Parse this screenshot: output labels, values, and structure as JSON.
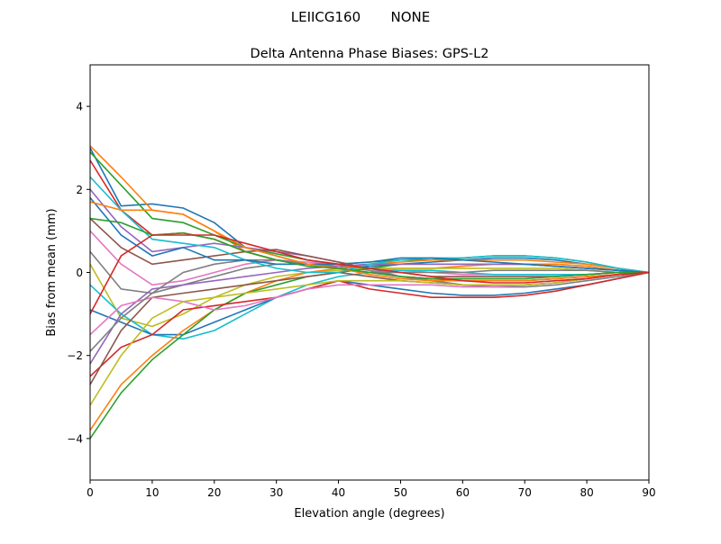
{
  "chart_data": {
    "type": "line",
    "suptitle": "LEIICG160       NONE",
    "title": "Delta Antenna Phase Biases: GPS-L2",
    "xlabel": "Elevation angle (degrees)",
    "ylabel": "Bias from mean (mm)",
    "xlim": [
      0,
      90
    ],
    "ylim": [
      -5,
      5
    ],
    "xticks": [
      0,
      10,
      20,
      30,
      40,
      50,
      60,
      70,
      80,
      90
    ],
    "yticks": [
      -4,
      -2,
      0,
      2,
      4
    ],
    "grid": false,
    "colors": [
      "#1f77b4",
      "#ff7f0e",
      "#2ca02c",
      "#d62728",
      "#9467bd",
      "#8c564b",
      "#e377c2",
      "#7f7f7f",
      "#bcbd22",
      "#17becf"
    ],
    "x": [
      0,
      5,
      10,
      15,
      20,
      25,
      30,
      35,
      40,
      45,
      50,
      55,
      60,
      65,
      70,
      75,
      80,
      85,
      90
    ],
    "series": [
      {
        "values": [
          3.0,
          1.6,
          1.65,
          1.55,
          1.2,
          0.6,
          0.4,
          0.2,
          0.1,
          0.15,
          0.2,
          0.25,
          0.3,
          0.35,
          0.35,
          0.3,
          0.2,
          0.1,
          0
        ]
      },
      {
        "values": [
          3.05,
          2.3,
          1.5,
          1.4,
          1.0,
          0.5,
          0.3,
          0.2,
          0.15,
          0.1,
          0.1,
          0.1,
          0.15,
          0.2,
          0.2,
          0.2,
          0.15,
          0.05,
          0
        ]
      },
      {
        "values": [
          2.9,
          2.1,
          1.3,
          1.2,
          0.9,
          0.6,
          0.45,
          0.3,
          0.2,
          0.25,
          0.3,
          0.3,
          0.35,
          0.4,
          0.4,
          0.35,
          0.25,
          0.1,
          0
        ]
      },
      {
        "values": [
          2.7,
          1.5,
          0.9,
          0.95,
          0.8,
          0.5,
          0.3,
          0.2,
          0.1,
          0.0,
          -0.1,
          -0.15,
          -0.2,
          -0.2,
          -0.2,
          -0.15,
          -0.1,
          -0.05,
          0
        ]
      },
      {
        "values": [
          2.0,
          1.1,
          0.5,
          0.6,
          0.7,
          0.6,
          0.5,
          0.4,
          0.25,
          0.1,
          -0.1,
          -0.2,
          -0.3,
          -0.3,
          -0.3,
          -0.25,
          -0.15,
          -0.05,
          0
        ]
      },
      {
        "values": [
          1.3,
          0.6,
          0.2,
          0.3,
          0.4,
          0.5,
          0.55,
          0.4,
          0.25,
          0.1,
          0.0,
          -0.1,
          -0.1,
          -0.1,
          -0.1,
          -0.1,
          -0.05,
          0,
          0
        ]
      },
      {
        "values": [
          1.0,
          0.2,
          -0.3,
          -0.2,
          0.0,
          0.2,
          0.3,
          0.25,
          0.2,
          0.1,
          0.05,
          0.0,
          -0.05,
          -0.05,
          -0.05,
          -0.05,
          -0.05,
          0,
          0
        ]
      },
      {
        "values": [
          0.5,
          -0.4,
          -0.5,
          -0.3,
          -0.1,
          0.1,
          0.2,
          0.2,
          0.15,
          0.05,
          -0.1,
          -0.2,
          -0.3,
          -0.35,
          -0.35,
          -0.3,
          -0.2,
          -0.1,
          0
        ]
      },
      {
        "values": [
          0.2,
          -1.1,
          -1.3,
          -1.0,
          -0.6,
          -0.3,
          -0.1,
          0.0,
          0.05,
          0.1,
          0.1,
          0.1,
          0.1,
          0.1,
          0.1,
          0.1,
          0.05,
          0,
          0
        ]
      },
      {
        "values": [
          -0.3,
          -1.0,
          -1.5,
          -1.6,
          -1.4,
          -1.0,
          -0.6,
          -0.3,
          -0.1,
          0.0,
          0.05,
          0.05,
          0.0,
          -0.05,
          -0.05,
          -0.05,
          -0.05,
          0,
          0
        ]
      },
      {
        "values": [
          -0.9,
          -1.2,
          -1.5,
          -1.5,
          -1.2,
          -0.9,
          -0.6,
          -0.4,
          -0.2,
          -0.3,
          -0.4,
          -0.5,
          -0.55,
          -0.55,
          -0.5,
          -0.4,
          -0.3,
          -0.15,
          0
        ]
      },
      {
        "values": [
          -3.8,
          -2.7,
          -2.0,
          -1.4,
          -0.9,
          -0.5,
          -0.2,
          0.0,
          0.1,
          0.2,
          0.25,
          0.3,
          0.3,
          0.3,
          0.3,
          0.25,
          0.2,
          0.1,
          0
        ]
      },
      {
        "values": [
          -4.0,
          -2.9,
          -2.1,
          -1.5,
          -0.9,
          -0.5,
          -0.3,
          -0.1,
          0.0,
          0.1,
          0.2,
          0.2,
          0.2,
          0.2,
          0.2,
          0.15,
          0.1,
          0.05,
          0
        ]
      },
      {
        "values": [
          -2.5,
          -1.8,
          -1.5,
          -0.9,
          -0.8,
          -0.7,
          -0.6,
          -0.4,
          -0.2,
          -0.4,
          -0.5,
          -0.6,
          -0.6,
          -0.6,
          -0.55,
          -0.45,
          -0.3,
          -0.15,
          0
        ]
      },
      {
        "values": [
          -2.2,
          -1.0,
          -0.4,
          -0.3,
          -0.2,
          -0.1,
          0.0,
          0.1,
          0.15,
          0.2,
          0.2,
          0.2,
          0.2,
          0.2,
          0.2,
          0.15,
          0.1,
          0.05,
          0
        ]
      },
      {
        "values": [
          -2.7,
          -1.4,
          -0.6,
          -0.5,
          -0.4,
          -0.3,
          -0.2,
          -0.1,
          0.0,
          -0.1,
          -0.2,
          -0.25,
          -0.3,
          -0.3,
          -0.3,
          -0.25,
          -0.15,
          -0.05,
          0
        ]
      },
      {
        "values": [
          -1.5,
          -0.8,
          -0.6,
          -0.7,
          -0.9,
          -0.8,
          -0.6,
          -0.4,
          -0.3,
          -0.3,
          -0.3,
          -0.3,
          -0.35,
          -0.35,
          -0.3,
          -0.25,
          -0.15,
          -0.05,
          0
        ]
      },
      {
        "values": [
          -1.9,
          -1.1,
          -0.5,
          0.0,
          0.2,
          0.3,
          0.3,
          0.2,
          0.1,
          0.0,
          0.0,
          0.0,
          0.0,
          0.05,
          0.05,
          0.05,
          0.05,
          0,
          0
        ]
      },
      {
        "values": [
          -3.2,
          -2.0,
          -1.1,
          -0.7,
          -0.6,
          -0.5,
          -0.4,
          -0.3,
          -0.2,
          -0.2,
          -0.2,
          -0.25,
          -0.3,
          -0.3,
          -0.3,
          -0.25,
          -0.15,
          -0.05,
          0
        ]
      },
      {
        "values": [
          2.3,
          1.5,
          0.8,
          0.7,
          0.6,
          0.3,
          0.1,
          0.0,
          0.0,
          0.2,
          0.3,
          0.35,
          0.35,
          0.4,
          0.4,
          0.35,
          0.25,
          0.1,
          0
        ]
      },
      {
        "values": [
          1.8,
          0.9,
          0.4,
          0.6,
          0.3,
          0.3,
          0.2,
          0.2,
          0.2,
          0.25,
          0.35,
          0.35,
          0.3,
          0.25,
          0.2,
          0.15,
          0.1,
          0.05,
          0
        ]
      },
      {
        "values": [
          1.7,
          1.5,
          1.5,
          1.4,
          1.0,
          0.6,
          0.4,
          0.2,
          0.1,
          -0.05,
          -0.15,
          -0.2,
          -0.2,
          -0.2,
          -0.2,
          -0.15,
          -0.1,
          -0.05,
          0
        ]
      },
      {
        "values": [
          1.3,
          1.2,
          0.9,
          0.95,
          0.8,
          0.5,
          0.3,
          0.15,
          0.1,
          0.0,
          -0.1,
          -0.15,
          -0.15,
          -0.15,
          -0.15,
          -0.1,
          -0.05,
          0,
          0
        ]
      },
      {
        "values": [
          -1.0,
          0.4,
          0.9,
          0.9,
          0.9,
          0.7,
          0.5,
          0.3,
          0.2,
          0.1,
          0.0,
          -0.1,
          -0.2,
          -0.25,
          -0.25,
          -0.2,
          -0.15,
          -0.05,
          0
        ]
      }
    ]
  }
}
